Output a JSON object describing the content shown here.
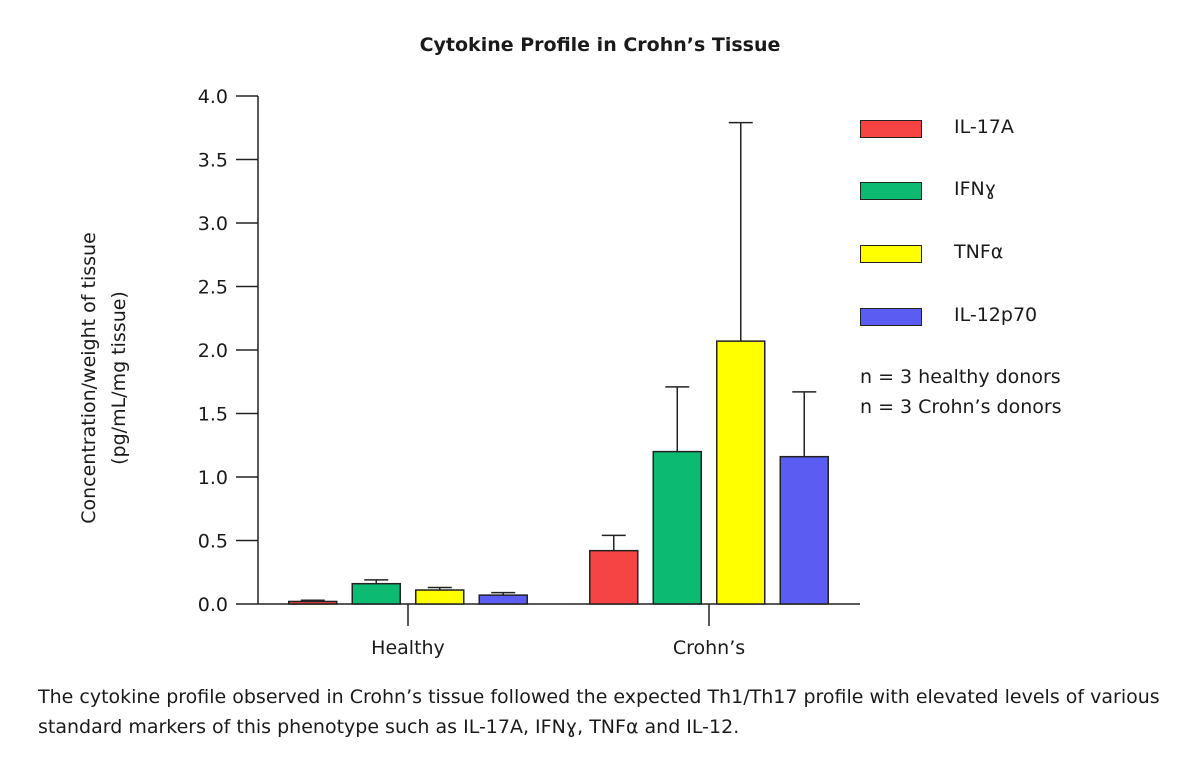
{
  "chart_data": {
    "type": "bar",
    "title": "Cytokine Profile in Crohn’s Tissue",
    "ylabel_lines": [
      "Concentration/weight of tissue",
      "(pg/mL/mg tissue)"
    ],
    "ylim": [
      0,
      4.0
    ],
    "yticks": [
      "0.0",
      "0.5",
      "1.0",
      "1.5",
      "2.0",
      "2.5",
      "3.0",
      "3.5",
      "4.0"
    ],
    "categories": [
      "Healthy",
      "Crohn’s"
    ],
    "series": [
      {
        "name": "IL-17A",
        "color": "#f64343",
        "values": [
          0.02,
          0.42
        ],
        "errors": [
          0.01,
          0.12
        ]
      },
      {
        "name": "IFNɣ",
        "color": "#0dba72",
        "values": [
          0.16,
          1.2
        ],
        "errors": [
          0.03,
          0.51
        ]
      },
      {
        "name": "TNFα",
        "color": "#ffff00",
        "values": [
          0.11,
          2.07
        ],
        "errors": [
          0.02,
          1.72
        ]
      },
      {
        "name": "IL-12p70",
        "color": "#5a5cf2",
        "values": [
          0.07,
          1.16
        ],
        "errors": [
          0.02,
          0.51
        ]
      }
    ],
    "legend_position": "right",
    "grid": false
  },
  "notes": [
    "n = 3 healthy donors",
    "n = 3 Crohn’s donors"
  ],
  "caption": "The cytokine profile observed in Crohn’s tissue followed the expected Th1/Th17 profile with elevated levels of various standard markers of this phenotype such as IL-17A, IFNɣ, TNFα and IL-12."
}
